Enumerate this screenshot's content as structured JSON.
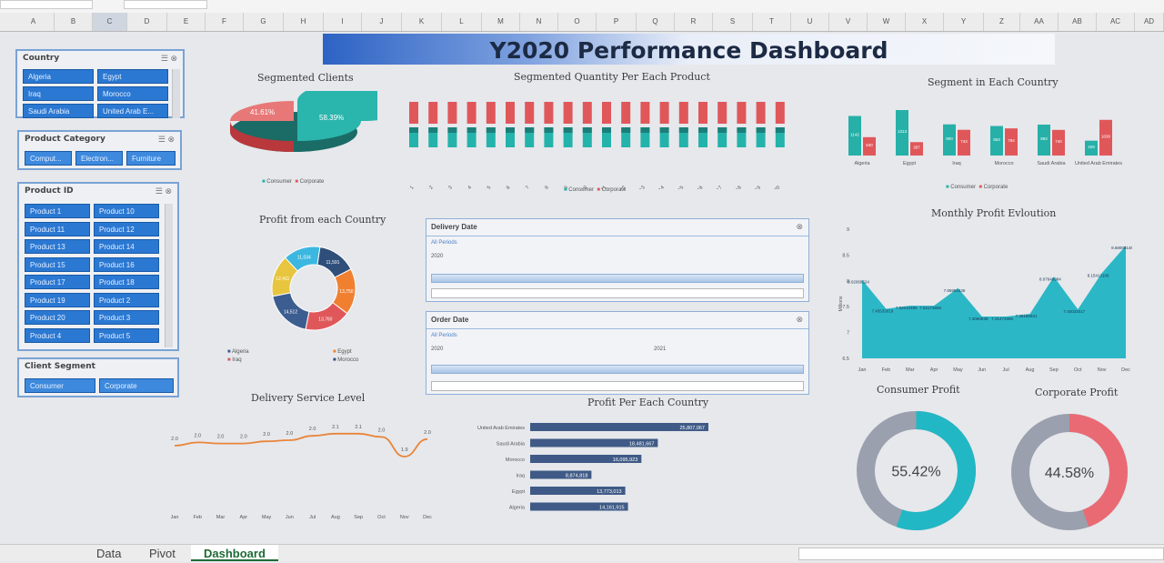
{
  "banner_title": "Y2020 Performance Dashboard",
  "column_headers": [
    "A",
    "B",
    "C",
    "D",
    "E",
    "F",
    "G",
    "H",
    "I",
    "J",
    "K",
    "L",
    "M",
    "N",
    "O",
    "P",
    "Q",
    "R",
    "S",
    "T",
    "U",
    "V",
    "W",
    "X",
    "Y",
    "Z",
    "AA",
    "AB",
    "AC",
    "AD"
  ],
  "slicers": {
    "country": {
      "title": "Country",
      "items": [
        "Algeria",
        "Egypt",
        "Iraq",
        "Morocco",
        "Saudi Arabia",
        "United Arab E..."
      ]
    },
    "category": {
      "title": "Product Category",
      "items": [
        "Comput...",
        "Electron...",
        "Furniture"
      ]
    },
    "product_id": {
      "title": "Product ID",
      "items": [
        "Product 1",
        "Product 10",
        "Product 11",
        "Product 12",
        "Product 13",
        "Product 14",
        "Product 15",
        "Product 16",
        "Product 17",
        "Product 18",
        "Product 19",
        "Product 2",
        "Product 20",
        "Product 3",
        "Product 4",
        "Product 5"
      ]
    },
    "segment": {
      "title": "Client Segment",
      "items": [
        "Consumer",
        "Corporate"
      ]
    }
  },
  "segmented_clients": {
    "title": "Segmented Clients",
    "consumer_pct": "58.39%",
    "corporate_pct": "41.61%",
    "legend": [
      "Consumer",
      "Corporate"
    ],
    "colors": {
      "consumer": "#26b0a8",
      "corporate": "#e0575a"
    }
  },
  "segmented_quantity": {
    "title": "Segmented Quantity Per Each Product",
    "products": [
      "Product 1",
      "Product 2",
      "Product 3",
      "Product 4",
      "Product 5",
      "Product 6",
      "Product 7",
      "Product 8",
      "Product 9",
      "Product 10",
      "Product 11",
      "Product 12",
      "Product 13",
      "Product 14",
      "Product 15",
      "Product 16",
      "Product 17",
      "Product 18",
      "Product 19",
      "Product 20"
    ],
    "legend": [
      "Consumer",
      "Corporate"
    ]
  },
  "segment_country": {
    "title": "Segment in Each Country",
    "countries": [
      "Algeria",
      "Egypt",
      "Iraq",
      "Morocco",
      "Saudi Arabia",
      "United Arab Emirates"
    ],
    "legend": [
      "Consumer",
      "Corporate"
    ],
    "consumer_labels": [
      "1142",
      "1313",
      "900",
      "853",
      "893",
      "429"
    ],
    "corporate_labels": [
      "530",
      "387",
      "743",
      "784",
      "740",
      "1030"
    ]
  },
  "profit_country": {
    "title": "Profit from each Country",
    "labels": [
      "11,591",
      "13,750",
      "13,760",
      "14,512",
      "12,411",
      "11,034"
    ],
    "legend": [
      "Algeria",
      "Egypt",
      "Iraq",
      "Morocco"
    ]
  },
  "delivery_date": {
    "title": "Delivery Date",
    "sub": "All Periods",
    "year": "2020"
  },
  "order_date": {
    "title": "Order Date",
    "sub": "All Periods",
    "year": "2020",
    "year2": "2021"
  },
  "monthly_profit": {
    "title": "Monthly Profit Evloution",
    "ylabel": "Millions",
    "yticks": [
      "9",
      "8.5",
      "8",
      "7.5",
      "7",
      "6.5"
    ],
    "months": [
      "Jan",
      "Feb",
      "Mar",
      "Apr",
      "May",
      "Jun",
      "Jul",
      "Aug",
      "Sep",
      "Oct",
      "Nov",
      "Dec"
    ],
    "value_labels": [
      "8.02068524",
      "7.45533019",
      "7.52010495",
      "7.52173656",
      "7.85951636",
      "7.3060838",
      "7.31474986",
      "7.36185931",
      "8.07648984",
      "7.45033017",
      "8.15413108",
      "8.68009146"
    ]
  },
  "delivery_service": {
    "title": "Delivery Service Level",
    "months": [
      "Jan",
      "Feb",
      "Mar",
      "Apr",
      "May",
      "Jun",
      "Jul",
      "Aug",
      "Sep",
      "Oct",
      "Nov",
      "Dec"
    ],
    "labels": [
      "2.0",
      "2.0",
      "2.0",
      "2.0",
      "2.0",
      "2.0",
      "2.0",
      "2.1",
      "2.1",
      "2.0",
      "1.9",
      "2.0"
    ]
  },
  "profit_each_country": {
    "title": "Profit Per Each Country",
    "countries": [
      "United Arab Emirates",
      "Saudi Arabia",
      "Morocco",
      "Iraq",
      "Egypt",
      "Algeria"
    ],
    "labels": [
      "25,807,067",
      "18,481,667",
      "16,095,923",
      "8,874,818",
      "13,773,013",
      "14,161,915"
    ]
  },
  "consumer_profit": {
    "title": "Consumer Profit",
    "value": "55.42%",
    "pct": 55.42,
    "color": "#22b7c4"
  },
  "corporate_profit": {
    "title": "Corporate Profit",
    "value": "44.58%",
    "pct": 44.58,
    "color": "#ea6a74"
  },
  "sheet_tabs": [
    "Data",
    "Pivot",
    "Dashboard"
  ],
  "active_tab": "Dashboard"
}
